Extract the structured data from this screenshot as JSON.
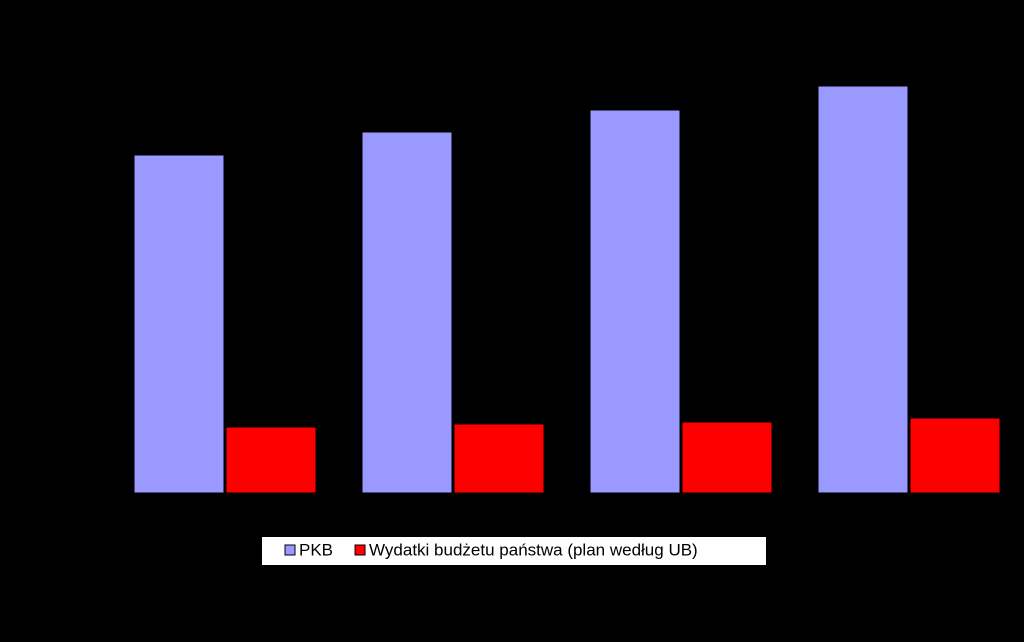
{
  "chart_data": {
    "type": "bar",
    "categories": [
      null,
      null,
      null,
      null
    ],
    "series": [
      {
        "name": "PKB",
        "color": "#9999ff",
        "values": [
          338,
          361,
          383,
          407
        ]
      },
      {
        "name": "Wydatki budżetu państwa (plan według UB)",
        "color": "#ff0000",
        "values": [
          66,
          69,
          71,
          75
        ]
      }
    ],
    "ylim": [
      0,
      480
    ],
    "legend": "bottom"
  }
}
